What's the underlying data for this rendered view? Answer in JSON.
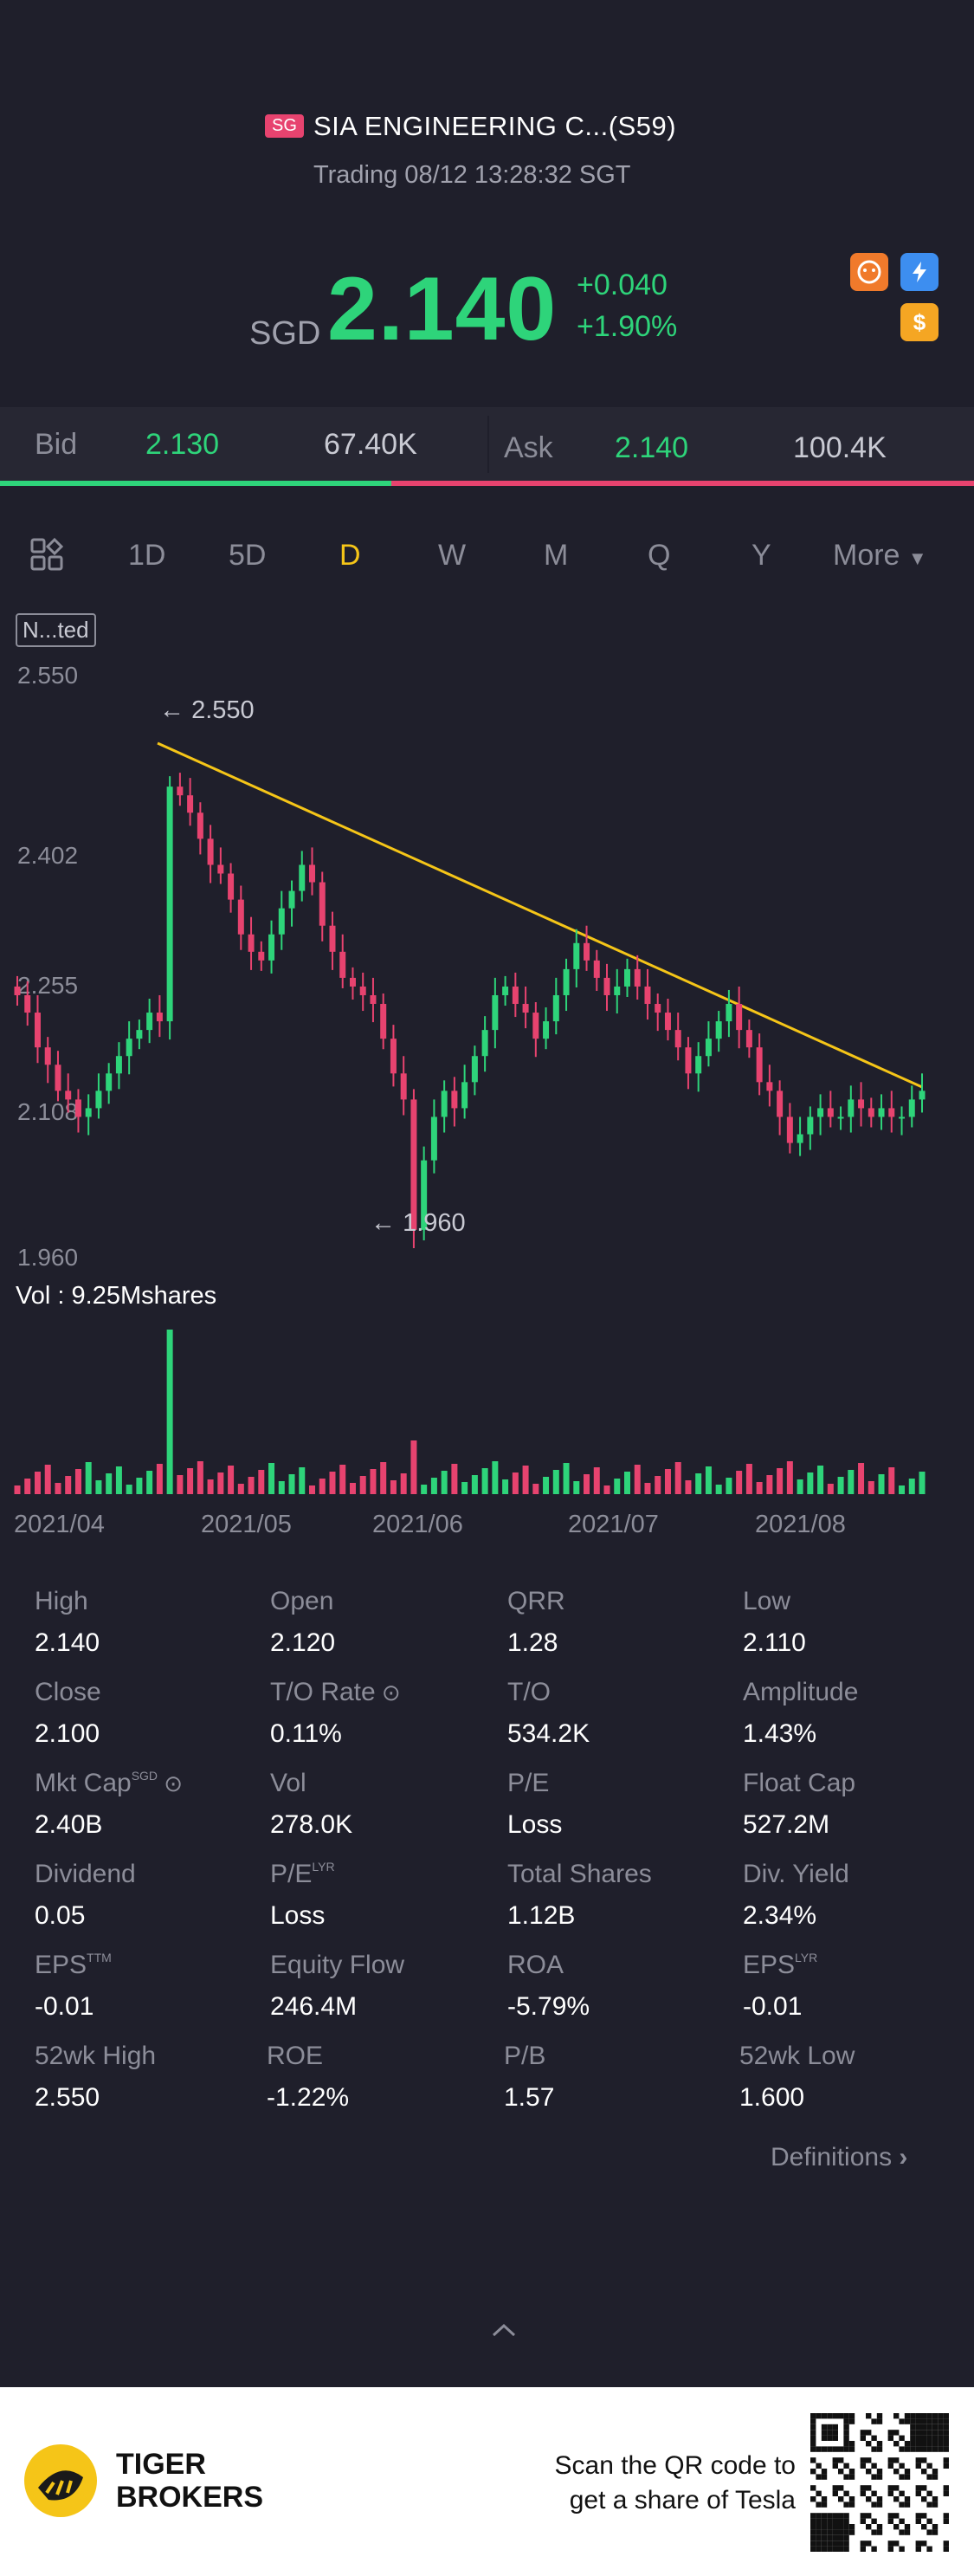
{
  "header": {
    "market_tag": "SG",
    "title": "SIA ENGINEERING C...(S59)",
    "trading_status": "Trading 08/12 13:28:32 SGT",
    "currency": "SGD",
    "price": "2.140",
    "change": "+0.040",
    "change_pct": "+1.90%"
  },
  "quote": {
    "bid_label": "Bid",
    "bid_price": "2.130",
    "bid_size": "67.40K",
    "ask_label": "Ask",
    "ask_price": "2.140",
    "ask_size": "100.4K"
  },
  "tabs": [
    "1D",
    "5D",
    "D",
    "W",
    "M",
    "Q",
    "Y",
    "More"
  ],
  "active_tab": "D",
  "chart_data": {
    "type": "candlestick",
    "indicator_label": "N...ted",
    "y_ticks": [
      "2.550",
      "2.402",
      "2.255",
      "2.108",
      "1.960"
    ],
    "high_marker": "2.550",
    "low_marker": "1.960",
    "x_ticks": [
      "2021/04",
      "2021/05",
      "2021/06",
      "2021/07",
      "2021/08"
    ],
    "volume_label": "Vol",
    "volume_value": ": 9.25Mshares",
    "trendline_color": "#f5c518",
    "up_color": "#2ed47a",
    "down_color": "#e7436f",
    "closes": [
      2.26,
      2.24,
      2.2,
      2.18,
      2.15,
      2.14,
      2.12,
      2.13,
      2.15,
      2.17,
      2.19,
      2.21,
      2.22,
      2.24,
      2.23,
      2.5,
      2.49,
      2.47,
      2.44,
      2.41,
      2.4,
      2.37,
      2.33,
      2.31,
      2.3,
      2.33,
      2.36,
      2.38,
      2.41,
      2.39,
      2.34,
      2.31,
      2.28,
      2.27,
      2.26,
      2.25,
      2.21,
      2.17,
      2.14,
      1.99,
      2.07,
      2.12,
      2.15,
      2.13,
      2.16,
      2.19,
      2.22,
      2.26,
      2.27,
      2.25,
      2.24,
      2.21,
      2.23,
      2.26,
      2.29,
      2.32,
      2.3,
      2.28,
      2.26,
      2.27,
      2.29,
      2.27,
      2.25,
      2.24,
      2.22,
      2.2,
      2.17,
      2.19,
      2.21,
      2.23,
      2.25,
      2.22,
      2.2,
      2.16,
      2.15,
      2.12,
      2.09,
      2.1,
      2.12,
      2.13,
      2.12,
      2.12,
      2.14,
      2.13,
      2.12,
      2.13,
      2.12,
      2.12,
      2.14,
      2.15
    ]
  },
  "stats": [
    {
      "label": "High",
      "value": "2.140"
    },
    {
      "label": "Open",
      "value": "2.120"
    },
    {
      "label": "QRR",
      "value": "1.28"
    },
    {
      "label": "Low",
      "value": "2.110"
    },
    {
      "label": "Close",
      "value": "2.100"
    },
    {
      "label": "T/O Rate",
      "value": "0.11%"
    },
    {
      "label": "T/O",
      "value": "534.2K"
    },
    {
      "label": "Amplitude",
      "value": "1.43%"
    },
    {
      "label": "Mkt Cap",
      "sup": "SGD",
      "value": "2.40B"
    },
    {
      "label": "Vol",
      "value": "278.0K"
    },
    {
      "label": "P/E",
      "value": "Loss"
    },
    {
      "label": "Float Cap",
      "value": "527.2M"
    },
    {
      "label": "Dividend",
      "value": "0.05"
    },
    {
      "label": "P/E",
      "sup": "LYR",
      "value": "Loss"
    },
    {
      "label": "Total Shares",
      "value": "1.12B"
    },
    {
      "label": "Div. Yield",
      "value": "2.34%"
    },
    {
      "label": "EPS",
      "sup": "TTM",
      "value": "-0.01"
    },
    {
      "label": "Equity Flow",
      "value": "246.4M"
    },
    {
      "label": "ROA",
      "value": "-5.79%"
    },
    {
      "label": "EPS",
      "sup": "LYR",
      "value": "-0.01"
    },
    {
      "label": "52wk High",
      "value": "2.550"
    },
    {
      "label": "ROE",
      "value": "-1.22%"
    },
    {
      "label": "P/B",
      "value": "1.57"
    },
    {
      "label": "52wk Low",
      "value": "1.600"
    }
  ],
  "definitions_link": "Definitions",
  "footer": {
    "brand_line1": "TIGER",
    "brand_line2": "BROKERS",
    "qr_text_line1": "Scan the QR code to",
    "qr_text_line2": "get a share of Tesla"
  }
}
